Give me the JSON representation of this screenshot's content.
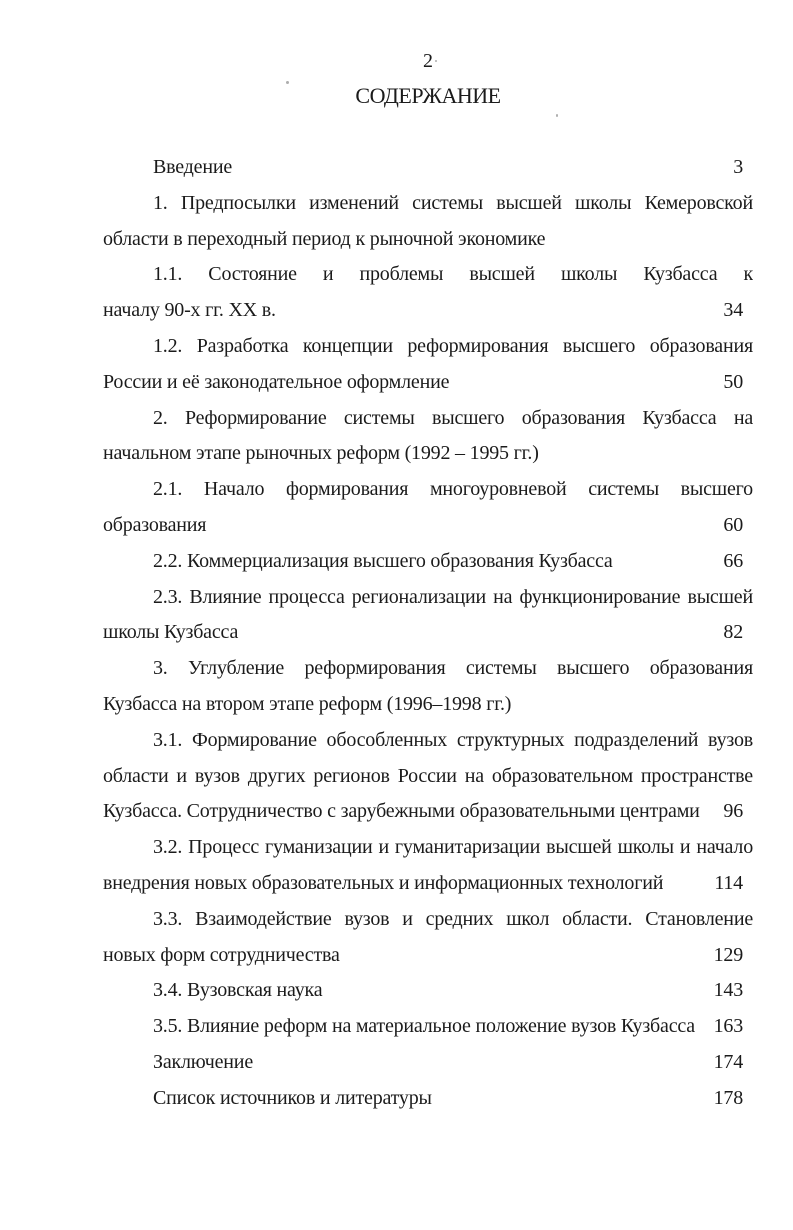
{
  "colors": {
    "paper": "#ffffff",
    "ink": "#1b1b1b"
  },
  "page": {
    "page_number_top": "2",
    "title": "СОДЕРЖАНИЕ"
  },
  "toc": {
    "entries": [
      {
        "lines": [
          "Введение"
        ],
        "page": "3"
      },
      {
        "lines": [
          "1. Предпосылки изменений системы высшей школы Кемеровской",
          "области в переходный период к рыночной экономике"
        ],
        "page": null
      },
      {
        "lines": [
          "1.1. Состояние и проблемы высшей школы Кузбасса к",
          "началу 90-х гг. XX в."
        ],
        "page": "34"
      },
      {
        "lines": [
          "1.2. Разработка концепции реформирования высшего образования",
          "России и её законодательное оформление"
        ],
        "page": "50"
      },
      {
        "lines": [
          "2. Реформирование системы высшего образования Кузбасса на",
          "начальном этапе рыночных реформ (1992 – 1995 гг.)"
        ],
        "page": null
      },
      {
        "lines": [
          "2.1. Начало формирования многоуровневой системы высшего",
          "образования"
        ],
        "page": "60"
      },
      {
        "lines": [
          "2.2. Коммерциализация высшего образования Кузбасса"
        ],
        "page": "66"
      },
      {
        "lines": [
          "2.3. Влияние процесса регионализации на функционирование высшей",
          "школы Кузбасса"
        ],
        "page": "82"
      },
      {
        "lines": [
          "3. Углубление реформирования системы высшего образования",
          "Кузбасса на втором этапе реформ (1996–1998 гг.)"
        ],
        "page": null
      },
      {
        "lines": [
          "3.1. Формирование обособленных структурных подразделений вузов",
          "области и вузов других регионов России на образовательном пространстве",
          "Кузбасса. Сотрудничество с зарубежными образовательными центрами"
        ],
        "page": "96"
      },
      {
        "lines": [
          "3.2. Процесс гуманизации и гуманитаризации высшей школы и начало",
          "внедрения новых образовательных и информационных технологий"
        ],
        "page": "114"
      },
      {
        "lines": [
          "3.3. Взаимодействие вузов и средних школ области. Становление",
          "новых форм сотрудничества"
        ],
        "page": "129"
      },
      {
        "lines": [
          "3.4. Вузовская наука"
        ],
        "page": "143"
      },
      {
        "lines": [
          "3.5. Влияние реформ на материальное положение вузов Кузбасса"
        ],
        "page": "163"
      },
      {
        "lines": [
          "Заключение"
        ],
        "page": "174"
      },
      {
        "lines": [
          "Список источников и литературы"
        ],
        "page": "178"
      }
    ]
  }
}
